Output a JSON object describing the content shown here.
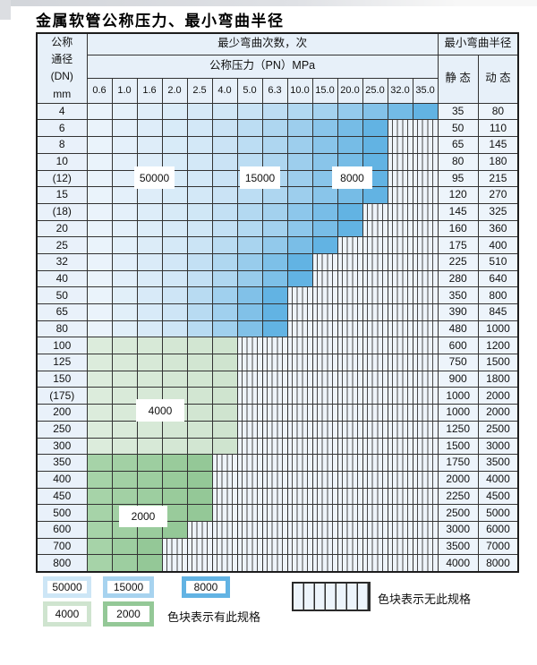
{
  "page": {
    "title": "金属软管公称压力、最小弯曲半径"
  },
  "table": {
    "corner": {
      "line1": "公称",
      "line2": "通径",
      "line3": "(DN)",
      "line4": "mm"
    },
    "cycles_header": "最少弯曲次数，次",
    "radius_header": "最小弯曲半径",
    "pressure_header": "公称压力（PN）MPa",
    "static_header": "静 态",
    "dynamic_header": "动 态",
    "pn_columns": [
      "0.6",
      "1.0",
      "1.6",
      "2.0",
      "2.5",
      "4.0",
      "5.0",
      "6.3",
      "10.0",
      "15.0",
      "20.0",
      "25.0",
      "32.0",
      "35.0"
    ],
    "rows": [
      {
        "dn": "4",
        "spec_until": "35.0",
        "shade": "blue",
        "static": "35",
        "dynamic": "80"
      },
      {
        "dn": "6",
        "spec_until": "25.0",
        "shade": "blue",
        "static": "50",
        "dynamic": "110"
      },
      {
        "dn": "8",
        "spec_until": "25.0",
        "shade": "blue",
        "static": "65",
        "dynamic": "145"
      },
      {
        "dn": "10",
        "spec_until": "25.0",
        "shade": "blue",
        "static": "80",
        "dynamic": "180"
      },
      {
        "dn": "(12)",
        "spec_until": "25.0",
        "shade": "blue",
        "static": "95",
        "dynamic": "215"
      },
      {
        "dn": "15",
        "spec_until": "25.0",
        "shade": "blue",
        "static": "120",
        "dynamic": "270"
      },
      {
        "dn": "(18)",
        "spec_until": "20.0",
        "shade": "blue",
        "static": "145",
        "dynamic": "325"
      },
      {
        "dn": "20",
        "spec_until": "20.0",
        "shade": "blue",
        "static": "160",
        "dynamic": "360"
      },
      {
        "dn": "25",
        "spec_until": "15.0",
        "shade": "blue",
        "static": "175",
        "dynamic": "400"
      },
      {
        "dn": "32",
        "spec_until": "10.0",
        "shade": "blue",
        "static": "225",
        "dynamic": "510"
      },
      {
        "dn": "40",
        "spec_until": "10.0",
        "shade": "blue",
        "static": "280",
        "dynamic": "640"
      },
      {
        "dn": "50",
        "spec_until": "6.3",
        "shade": "blue",
        "static": "350",
        "dynamic": "800"
      },
      {
        "dn": "65",
        "spec_until": "6.3",
        "shade": "blue",
        "static": "390",
        "dynamic": "845"
      },
      {
        "dn": "80",
        "spec_until": "6.3",
        "shade": "blue",
        "static": "480",
        "dynamic": "1000"
      },
      {
        "dn": "100",
        "spec_until": "4.0",
        "shade": "green_4000",
        "static": "600",
        "dynamic": "1200"
      },
      {
        "dn": "125",
        "spec_until": "4.0",
        "shade": "green_4000",
        "static": "750",
        "dynamic": "1500"
      },
      {
        "dn": "150",
        "spec_until": "4.0",
        "shade": "green_4000",
        "static": "900",
        "dynamic": "1800"
      },
      {
        "dn": "(175)",
        "spec_until": "4.0",
        "shade": "green_4000",
        "static": "1000",
        "dynamic": "2000"
      },
      {
        "dn": "200",
        "spec_until": "4.0",
        "shade": "green_4000",
        "static": "1000",
        "dynamic": "2000"
      },
      {
        "dn": "250",
        "spec_until": "4.0",
        "shade": "green_4000",
        "static": "1250",
        "dynamic": "2500"
      },
      {
        "dn": "300",
        "spec_until": "4.0",
        "shade": "green_4000",
        "static": "1500",
        "dynamic": "3000"
      },
      {
        "dn": "350",
        "spec_until": "2.5",
        "shade": "green_2000",
        "static": "1750",
        "dynamic": "3500"
      },
      {
        "dn": "400",
        "spec_until": "2.5",
        "shade": "green_2000",
        "static": "2000",
        "dynamic": "4000"
      },
      {
        "dn": "450",
        "spec_until": "2.5",
        "shade": "green_2000",
        "static": "2250",
        "dynamic": "4500"
      },
      {
        "dn": "500",
        "spec_until": "2.5",
        "shade": "green_2000",
        "static": "2500",
        "dynamic": "5000"
      },
      {
        "dn": "600",
        "spec_until": "2.0",
        "shade": "green_2000",
        "static": "3000",
        "dynamic": "6000"
      },
      {
        "dn": "700",
        "spec_until": "1.6",
        "shade": "green_2000",
        "static": "3500",
        "dynamic": "7000"
      },
      {
        "dn": "800",
        "spec_until": "1.6",
        "shade": "green_2000",
        "static": "4000",
        "dynamic": "8000"
      }
    ]
  },
  "overlays": {
    "cycles_50000": "50000",
    "cycles_15000": "15000",
    "cycles_8000": "8000",
    "cycles_4000": "4000",
    "cycles_2000": "2000"
  },
  "legend": {
    "items": [
      {
        "label": "50000",
        "color": "#cde6f6"
      },
      {
        "label": "15000",
        "color": "#a7d3ef"
      },
      {
        "label": "8000",
        "color": "#62b3e3"
      },
      {
        "label": "4000",
        "color": "#cfe4cf"
      },
      {
        "label": "2000",
        "color": "#94c897"
      }
    ],
    "has_spec_note": "色块表示有此规格",
    "no_spec_note": "色块表示无此规格"
  },
  "palette": {
    "blue_stops": [
      "#eaf3fb",
      "#cfe6f6",
      "#a7d3ef",
      "#62b3e3"
    ],
    "green_4000_start": "#dcecdc",
    "green_4000_end": "#cfe4cf",
    "green_2000_start": "#a6d3a8",
    "green_2000_end": "#94c897",
    "hatch_bg": "#eef4fa",
    "hatch_line": "#4a4a4a"
  }
}
